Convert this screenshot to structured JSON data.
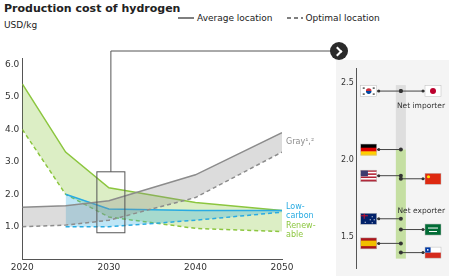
{
  "chart_data": [
    {
      "type": "line",
      "title": "Production cost of hydrogen",
      "y_label": "USD/kg",
      "line_styles": [
        {
          "label": "Average location",
          "line_style": "solid"
        },
        {
          "label": "Optimal location",
          "line_style": "dashed"
        }
      ],
      "xlim": [
        2020,
        2050
      ],
      "xticks": [
        2020,
        2030,
        2040,
        2050
      ],
      "ylim": [
        0,
        6.2
      ],
      "yticks": [
        {
          "value": 1,
          "label": "1.0"
        },
        {
          "value": 2,
          "label": "2.0"
        },
        {
          "value": 3,
          "label": "3.0"
        },
        {
          "value": 4,
          "label": "4.0"
        },
        {
          "value": 5,
          "label": "5.0"
        },
        {
          "value": 6,
          "label": "6.0"
        }
      ],
      "grid": false,
      "highlight": 2030,
      "series": [
        {
          "name": "Gray¹,²",
          "color": "#8c8c8c",
          "x": [
            2020,
            2025,
            2030,
            2040,
            2050
          ],
          "average": [
            1.6,
            1.65,
            1.8,
            2.6,
            3.9
          ],
          "optimal": [
            1.0,
            1.05,
            1.2,
            1.9,
            3.3
          ]
        },
        {
          "name": "Low-carbon",
          "color": "#29abe2",
          "x": [
            2025,
            2030,
            2040,
            2050
          ],
          "average": [
            2.0,
            1.55,
            1.5,
            1.5
          ],
          "optimal": [
            1.0,
            1.0,
            1.2,
            1.45
          ]
        },
        {
          "name": "Renew-able",
          "color": "#8cc63f",
          "x": [
            2020,
            2025,
            2030,
            2040,
            2050
          ],
          "average": [
            5.4,
            3.3,
            2.2,
            1.75,
            1.5
          ],
          "optimal": [
            4.0,
            2.0,
            1.3,
            0.95,
            0.85
          ]
        }
      ]
    },
    {
      "type": "scatter",
      "ylim": [
        1.3,
        2.6
      ],
      "yticks": [
        1.5,
        {
          "value": 2,
          "label": "2.0"
        },
        2.5
      ],
      "grid": false,
      "tick_labels": "y",
      "values": [
        2.45,
        2.45,
        2.07,
        1.9,
        1.88,
        1.62,
        1.55,
        1.46,
        1.4
      ],
      "annotations": [
        "Net importer",
        "Net exporter"
      ]
    }
  ]
}
